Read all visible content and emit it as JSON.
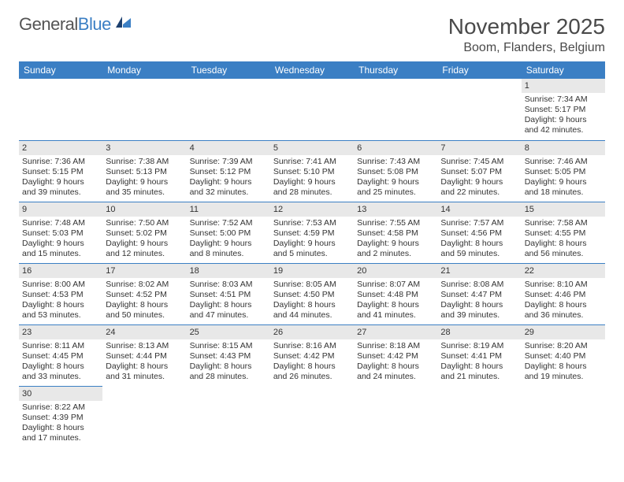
{
  "logo": {
    "general": "General",
    "blue": "Blue"
  },
  "title": "November 2025",
  "location": "Boom, Flanders, Belgium",
  "colors": {
    "header_bg": "#3b7fc4",
    "daynum_bg": "#e8e8e8",
    "border": "#3b7fc4"
  },
  "weekdays": [
    "Sunday",
    "Monday",
    "Tuesday",
    "Wednesday",
    "Thursday",
    "Friday",
    "Saturday"
  ],
  "weeks": [
    [
      null,
      null,
      null,
      null,
      null,
      null,
      {
        "n": "1",
        "sr": "Sunrise: 7:34 AM",
        "ss": "Sunset: 5:17 PM",
        "d1": "Daylight: 9 hours",
        "d2": "and 42 minutes."
      }
    ],
    [
      {
        "n": "2",
        "sr": "Sunrise: 7:36 AM",
        "ss": "Sunset: 5:15 PM",
        "d1": "Daylight: 9 hours",
        "d2": "and 39 minutes."
      },
      {
        "n": "3",
        "sr": "Sunrise: 7:38 AM",
        "ss": "Sunset: 5:13 PM",
        "d1": "Daylight: 9 hours",
        "d2": "and 35 minutes."
      },
      {
        "n": "4",
        "sr": "Sunrise: 7:39 AM",
        "ss": "Sunset: 5:12 PM",
        "d1": "Daylight: 9 hours",
        "d2": "and 32 minutes."
      },
      {
        "n": "5",
        "sr": "Sunrise: 7:41 AM",
        "ss": "Sunset: 5:10 PM",
        "d1": "Daylight: 9 hours",
        "d2": "and 28 minutes."
      },
      {
        "n": "6",
        "sr": "Sunrise: 7:43 AM",
        "ss": "Sunset: 5:08 PM",
        "d1": "Daylight: 9 hours",
        "d2": "and 25 minutes."
      },
      {
        "n": "7",
        "sr": "Sunrise: 7:45 AM",
        "ss": "Sunset: 5:07 PM",
        "d1": "Daylight: 9 hours",
        "d2": "and 22 minutes."
      },
      {
        "n": "8",
        "sr": "Sunrise: 7:46 AM",
        "ss": "Sunset: 5:05 PM",
        "d1": "Daylight: 9 hours",
        "d2": "and 18 minutes."
      }
    ],
    [
      {
        "n": "9",
        "sr": "Sunrise: 7:48 AM",
        "ss": "Sunset: 5:03 PM",
        "d1": "Daylight: 9 hours",
        "d2": "and 15 minutes."
      },
      {
        "n": "10",
        "sr": "Sunrise: 7:50 AM",
        "ss": "Sunset: 5:02 PM",
        "d1": "Daylight: 9 hours",
        "d2": "and 12 minutes."
      },
      {
        "n": "11",
        "sr": "Sunrise: 7:52 AM",
        "ss": "Sunset: 5:00 PM",
        "d1": "Daylight: 9 hours",
        "d2": "and 8 minutes."
      },
      {
        "n": "12",
        "sr": "Sunrise: 7:53 AM",
        "ss": "Sunset: 4:59 PM",
        "d1": "Daylight: 9 hours",
        "d2": "and 5 minutes."
      },
      {
        "n": "13",
        "sr": "Sunrise: 7:55 AM",
        "ss": "Sunset: 4:58 PM",
        "d1": "Daylight: 9 hours",
        "d2": "and 2 minutes."
      },
      {
        "n": "14",
        "sr": "Sunrise: 7:57 AM",
        "ss": "Sunset: 4:56 PM",
        "d1": "Daylight: 8 hours",
        "d2": "and 59 minutes."
      },
      {
        "n": "15",
        "sr": "Sunrise: 7:58 AM",
        "ss": "Sunset: 4:55 PM",
        "d1": "Daylight: 8 hours",
        "d2": "and 56 minutes."
      }
    ],
    [
      {
        "n": "16",
        "sr": "Sunrise: 8:00 AM",
        "ss": "Sunset: 4:53 PM",
        "d1": "Daylight: 8 hours",
        "d2": "and 53 minutes."
      },
      {
        "n": "17",
        "sr": "Sunrise: 8:02 AM",
        "ss": "Sunset: 4:52 PM",
        "d1": "Daylight: 8 hours",
        "d2": "and 50 minutes."
      },
      {
        "n": "18",
        "sr": "Sunrise: 8:03 AM",
        "ss": "Sunset: 4:51 PM",
        "d1": "Daylight: 8 hours",
        "d2": "and 47 minutes."
      },
      {
        "n": "19",
        "sr": "Sunrise: 8:05 AM",
        "ss": "Sunset: 4:50 PM",
        "d1": "Daylight: 8 hours",
        "d2": "and 44 minutes."
      },
      {
        "n": "20",
        "sr": "Sunrise: 8:07 AM",
        "ss": "Sunset: 4:48 PM",
        "d1": "Daylight: 8 hours",
        "d2": "and 41 minutes."
      },
      {
        "n": "21",
        "sr": "Sunrise: 8:08 AM",
        "ss": "Sunset: 4:47 PM",
        "d1": "Daylight: 8 hours",
        "d2": "and 39 minutes."
      },
      {
        "n": "22",
        "sr": "Sunrise: 8:10 AM",
        "ss": "Sunset: 4:46 PM",
        "d1": "Daylight: 8 hours",
        "d2": "and 36 minutes."
      }
    ],
    [
      {
        "n": "23",
        "sr": "Sunrise: 8:11 AM",
        "ss": "Sunset: 4:45 PM",
        "d1": "Daylight: 8 hours",
        "d2": "and 33 minutes."
      },
      {
        "n": "24",
        "sr": "Sunrise: 8:13 AM",
        "ss": "Sunset: 4:44 PM",
        "d1": "Daylight: 8 hours",
        "d2": "and 31 minutes."
      },
      {
        "n": "25",
        "sr": "Sunrise: 8:15 AM",
        "ss": "Sunset: 4:43 PM",
        "d1": "Daylight: 8 hours",
        "d2": "and 28 minutes."
      },
      {
        "n": "26",
        "sr": "Sunrise: 8:16 AM",
        "ss": "Sunset: 4:42 PM",
        "d1": "Daylight: 8 hours",
        "d2": "and 26 minutes."
      },
      {
        "n": "27",
        "sr": "Sunrise: 8:18 AM",
        "ss": "Sunset: 4:42 PM",
        "d1": "Daylight: 8 hours",
        "d2": "and 24 minutes."
      },
      {
        "n": "28",
        "sr": "Sunrise: 8:19 AM",
        "ss": "Sunset: 4:41 PM",
        "d1": "Daylight: 8 hours",
        "d2": "and 21 minutes."
      },
      {
        "n": "29",
        "sr": "Sunrise: 8:20 AM",
        "ss": "Sunset: 4:40 PM",
        "d1": "Daylight: 8 hours",
        "d2": "and 19 minutes."
      }
    ],
    [
      {
        "n": "30",
        "sr": "Sunrise: 8:22 AM",
        "ss": "Sunset: 4:39 PM",
        "d1": "Daylight: 8 hours",
        "d2": "and 17 minutes."
      },
      null,
      null,
      null,
      null,
      null,
      null
    ]
  ]
}
